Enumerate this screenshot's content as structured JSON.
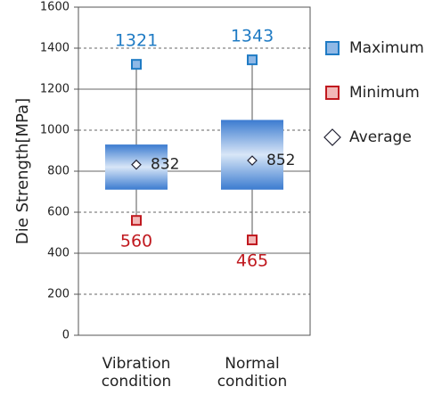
{
  "chart_data": {
    "type": "box",
    "y_label": "Die Strength[MPa]",
    "categories": [
      [
        "Vibration",
        "condition"
      ],
      [
        "Normal",
        "condition"
      ]
    ],
    "q1": [
      710,
      710
    ],
    "q3": [
      930,
      1050
    ],
    "box_color": "#3b7bd0",
    "series": [
      {
        "name": "Maximum",
        "color": "#1f7bc4",
        "values": [
          1321,
          1343
        ]
      },
      {
        "name": "Minimum",
        "color": "#c0191f",
        "values": [
          560,
          465
        ]
      },
      {
        "name": "Average",
        "color": "#222222",
        "values": [
          832,
          852
        ]
      }
    ],
    "ylim": [
      0,
      1600
    ],
    "yticks": [
      0,
      200,
      400,
      600,
      800,
      1000,
      1200,
      1400,
      1600
    ],
    "grid": true,
    "legend": "right"
  }
}
